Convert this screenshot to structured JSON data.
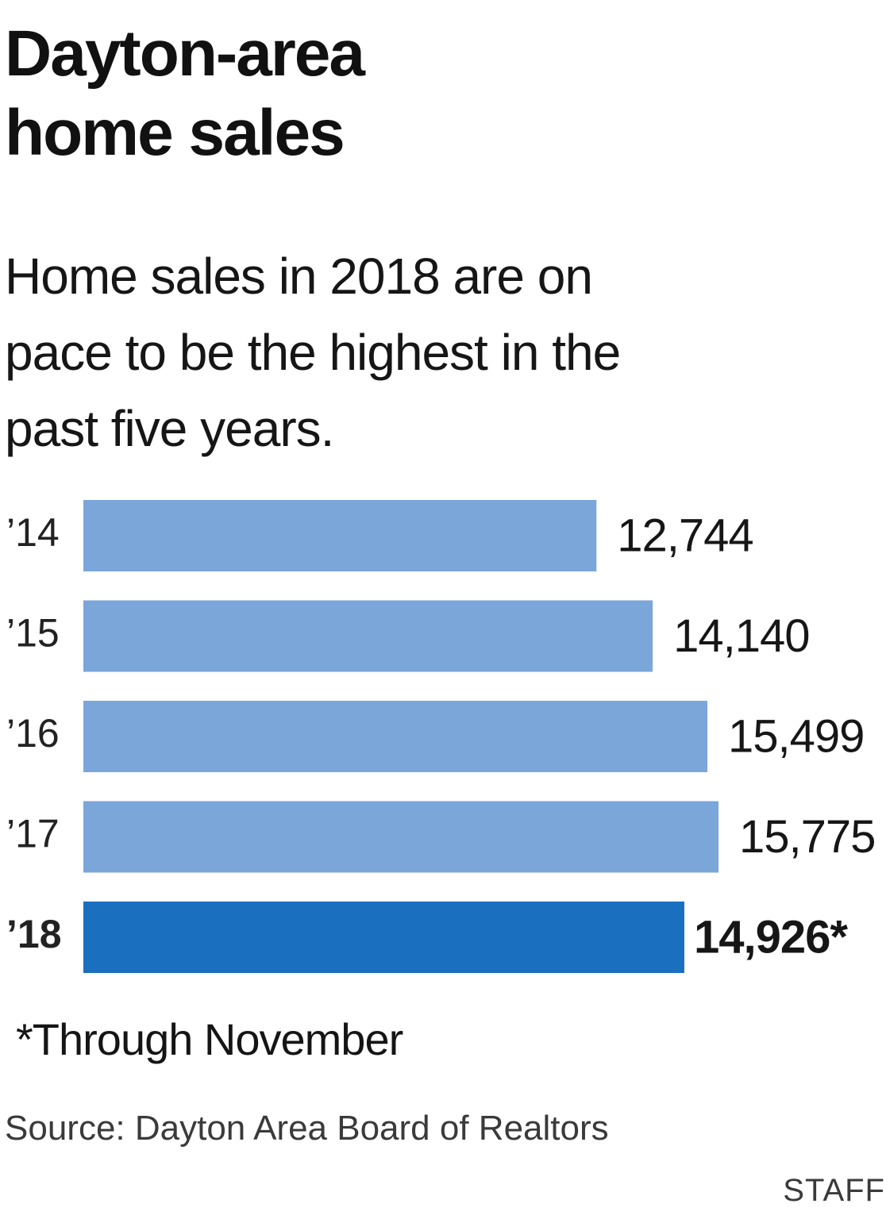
{
  "title_lines": [
    "Dayton-area",
    "home sales"
  ],
  "subtitle_lines": [
    "Home sales in 2018 are on",
    "pace to be the highest in the",
    "past five years."
  ],
  "footnote": "*Through November",
  "source": "Source: Dayton Area Board of Realtors",
  "credit": "STAFF",
  "colors": {
    "bar": "#7ba6da",
    "highlight_bar": "#1a6fbf",
    "text": "#111111"
  },
  "chart_data": {
    "type": "bar",
    "orientation": "horizontal",
    "title": "",
    "xlabel": "",
    "ylabel": "",
    "categories": [
      "’14",
      "’15",
      "’16",
      "’17",
      "’18"
    ],
    "values": [
      12744,
      14140,
      15499,
      15775,
      14926
    ],
    "value_labels": [
      "12,744",
      "14,140",
      "15,499",
      "15,775",
      "14,926*"
    ],
    "highlight_index": 4,
    "xlim": [
      0,
      15775
    ],
    "grid": false,
    "legend": "none"
  }
}
